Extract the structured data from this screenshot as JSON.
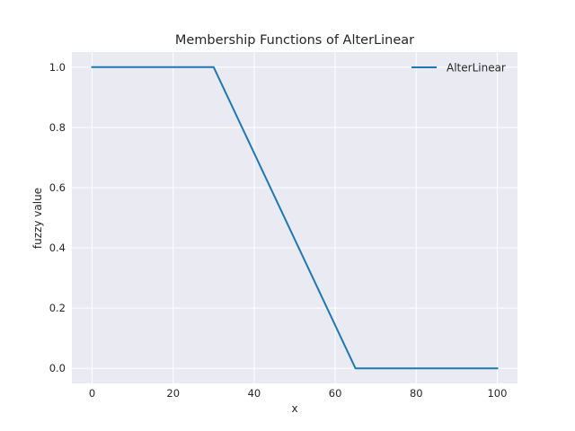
{
  "chart_data": {
    "type": "line",
    "title": "Membership Functions of AlterLinear",
    "xlabel": "x",
    "ylabel": "fuzzy value",
    "xlim": [
      -5,
      105
    ],
    "ylim": [
      -0.05,
      1.05
    ],
    "xticks": [
      0,
      20,
      40,
      60,
      80,
      100
    ],
    "yticks": [
      0.0,
      0.2,
      0.4,
      0.6,
      0.8,
      1.0
    ],
    "xtick_labels": [
      "0",
      "20",
      "40",
      "60",
      "80",
      "100"
    ],
    "ytick_labels": [
      "0.0",
      "0.2",
      "0.4",
      "0.6",
      "0.8",
      "1.0"
    ],
    "grid": true,
    "legend_position": "top-right",
    "series": [
      {
        "name": "AlterLinear",
        "color": "#1f77b4",
        "x": [
          0,
          30,
          65,
          100
        ],
        "y": [
          1.0,
          1.0,
          0.0,
          0.0
        ]
      }
    ]
  },
  "colors": {
    "plot_background": "#eaeaf2",
    "grid": "#ffffff",
    "text": "#262626"
  }
}
